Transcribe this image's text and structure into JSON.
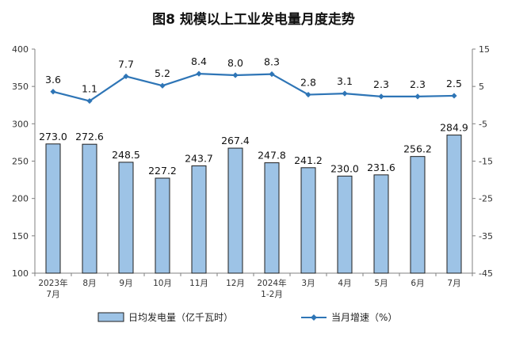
{
  "chart_data": {
    "type": "bar+line",
    "title": "图8  规模以上工业发电量月度走势",
    "categories": [
      [
        "2023年",
        "7月"
      ],
      [
        "8月"
      ],
      [
        "9月"
      ],
      [
        "10月"
      ],
      [
        "11月"
      ],
      [
        "12月"
      ],
      [
        "2024年",
        "1-2月"
      ],
      [
        "3月"
      ],
      [
        "4月"
      ],
      [
        "5月"
      ],
      [
        "6月"
      ],
      [
        "7月"
      ]
    ],
    "series": [
      {
        "name": "日均发电量（亿千瓦时）",
        "type": "bar",
        "axis": "left",
        "color": "#9DC3E6",
        "values": [
          273.0,
          272.6,
          248.5,
          227.2,
          243.7,
          267.4,
          247.8,
          241.2,
          230.0,
          231.6,
          256.2,
          284.9
        ],
        "labels": [
          "273.0",
          "272.6",
          "248.5",
          "227.2",
          "243.7",
          "267.4",
          "247.8",
          "241.2",
          "230.0",
          "231.6",
          "256.2",
          "284.9"
        ]
      },
      {
        "name": "当月增速（%）",
        "type": "line",
        "axis": "right",
        "color": "#2E75B6",
        "values": [
          3.6,
          1.1,
          7.7,
          5.2,
          8.4,
          8.0,
          8.3,
          2.8,
          3.1,
          2.3,
          2.3,
          2.5
        ],
        "labels": [
          "3.6",
          "1.1",
          "7.7",
          "5.2",
          "8.4",
          "8.0",
          "8.3",
          "2.8",
          "3.1",
          "2.3",
          "2.3",
          "2.5"
        ]
      }
    ],
    "y_left": {
      "min": 100,
      "max": 400,
      "ticks": [
        "100",
        "150",
        "200",
        "250",
        "300",
        "350",
        "400"
      ]
    },
    "y_right": {
      "min": -45,
      "max": 15,
      "ticks": [
        "-45",
        "-35",
        "-25",
        "-15",
        "-5",
        "5",
        "15"
      ]
    },
    "grid": false,
    "legend_position": "bottom"
  }
}
